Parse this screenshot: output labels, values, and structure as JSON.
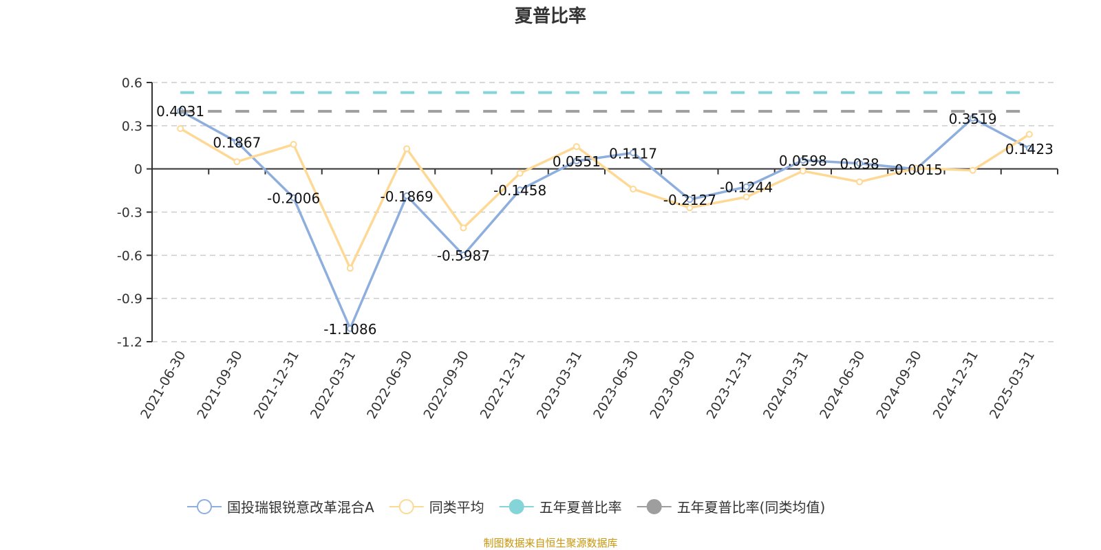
{
  "chart_data": {
    "type": "line",
    "title": "夏普比率",
    "categories": [
      "2021-06-30",
      "2021-09-30",
      "2021-12-31",
      "2022-03-31",
      "2022-06-30",
      "2022-09-30",
      "2022-12-31",
      "2023-03-31",
      "2023-06-30",
      "2023-09-30",
      "2023-12-31",
      "2024-03-31",
      "2024-06-30",
      "2024-09-30",
      "2024-12-31",
      "2025-03-31"
    ],
    "ylim": [
      -1.2,
      0.6
    ],
    "yticks": [
      "0.6",
      "0.3",
      "0",
      "-0.3",
      "-0.6",
      "-0.9",
      "-1.2"
    ],
    "grid": true,
    "legend_position": "bottom",
    "series": [
      {
        "name": "国投瑞银锐意改革混合A",
        "color": "#8eaedd",
        "values": [
          0.4031,
          0.1867,
          -0.2006,
          -1.1086,
          -0.1869,
          -0.5987,
          -0.1458,
          0.0551,
          0.1117,
          -0.2127,
          -0.1244,
          0.0598,
          0.038,
          -0.0015,
          0.3519,
          0.1423
        ],
        "labels": [
          "0.4031",
          "0.1867",
          "-0.2006",
          "-1.1086",
          "-0.1869",
          "-0.5987",
          "-0.1458",
          "0.0551",
          "0.1117",
          "-0.2127",
          "-0.1244",
          "0.0598",
          "0.038",
          "-0.0015",
          "0.3519",
          "0.1423"
        ]
      },
      {
        "name": "同类平均",
        "color": "#fdd995",
        "values": [
          0.28,
          0.05,
          0.17,
          -0.69,
          0.14,
          -0.41,
          -0.03,
          0.155,
          -0.14,
          -0.27,
          -0.195,
          -0.015,
          -0.09,
          0.005,
          -0.01,
          0.24
        ]
      },
      {
        "name": "五年夏普比率",
        "color": "#85d4d8",
        "constant": 0.53
      },
      {
        "name": "五年夏普比率(同类均值)",
        "color": "#9e9e9e",
        "constant": 0.4
      }
    ],
    "source": "制图数据来自恒生聚源数据库"
  }
}
